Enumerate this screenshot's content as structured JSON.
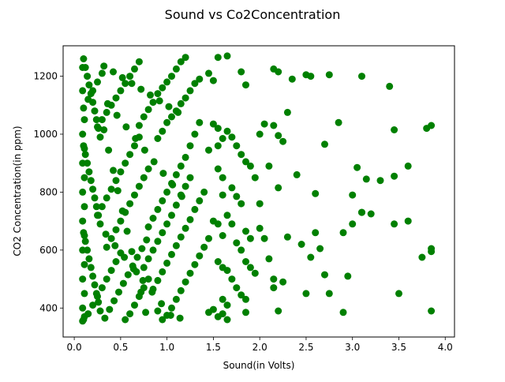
{
  "chart_data": {
    "type": "scatter",
    "title": "Sound vs Co2Concentration",
    "xlabel": "Sound(in Volts)",
    "ylabel": "CO2 Concentration(in ppm)",
    "xlim": [
      -0.12,
      4.1
    ],
    "ylim": [
      300,
      1305
    ],
    "xticks": [
      0.0,
      0.5,
      1.0,
      1.5,
      2.0,
      2.5,
      3.0,
      3.5,
      4.0
    ],
    "xtick_labels": [
      "0.0",
      "0.5",
      "1.0",
      "1.5",
      "2.0",
      "2.5",
      "3.0",
      "3.5",
      "4.0"
    ],
    "yticks": [
      400,
      600,
      800,
      1000,
      1200
    ],
    "ytick_labels": [
      "400",
      "600",
      "800",
      "1000",
      "1200"
    ],
    "grid": false,
    "marker_color": "#008000",
    "series": [
      {
        "points": [
          [
            1.55,
            1265
          ],
          [
            1.65,
            1270
          ],
          [
            1.8,
            1215
          ],
          [
            1.85,
            1170
          ],
          [
            2.15,
            1225
          ],
          [
            2.2,
            1215
          ],
          [
            2.35,
            1190
          ],
          [
            2.5,
            1205
          ],
          [
            2.55,
            1200
          ],
          [
            2.75,
            1205
          ],
          [
            3.1,
            1200
          ],
          [
            3.4,
            1165
          ],
          [
            2.3,
            1075
          ],
          [
            2.15,
            1030
          ],
          [
            2.05,
            1035
          ],
          [
            2.2,
            995
          ],
          [
            2.25,
            975
          ],
          [
            2.85,
            1040
          ],
          [
            3.45,
            1015
          ],
          [
            3.8,
            1020
          ],
          [
            3.85,
            1030
          ],
          [
            1.5,
            1035
          ],
          [
            1.55,
            1020
          ],
          [
            1.65,
            1010
          ],
          [
            1.7,
            990
          ],
          [
            1.75,
            960
          ],
          [
            1.8,
            930
          ],
          [
            1.85,
            905
          ],
          [
            1.9,
            890
          ],
          [
            2.0,
            1000
          ],
          [
            1.55,
            960
          ],
          [
            1.45,
            945
          ],
          [
            1.6,
            985
          ],
          [
            2.1,
            890
          ],
          [
            2.4,
            860
          ],
          [
            2.2,
            815
          ],
          [
            2.6,
            795
          ],
          [
            2.7,
            965
          ],
          [
            3.05,
            885
          ],
          [
            3.15,
            845
          ],
          [
            3.2,
            725
          ],
          [
            3.3,
            840
          ],
          [
            3.45,
            855
          ],
          [
            3.6,
            890
          ],
          [
            3.0,
            790
          ],
          [
            3.1,
            730
          ],
          [
            2.0,
            760
          ],
          [
            1.95,
            850
          ],
          [
            1.55,
            880
          ],
          [
            1.6,
            850
          ],
          [
            1.7,
            815
          ],
          [
            1.75,
            785
          ],
          [
            1.8,
            760
          ],
          [
            1.6,
            790
          ],
          [
            1.65,
            720
          ],
          [
            1.7,
            690
          ],
          [
            1.85,
            665
          ],
          [
            1.9,
            640
          ],
          [
            2.0,
            675
          ],
          [
            2.05,
            640
          ],
          [
            1.5,
            700
          ],
          [
            1.55,
            690
          ],
          [
            1.6,
            650
          ],
          [
            1.75,
            625
          ],
          [
            1.8,
            600
          ],
          [
            1.85,
            560
          ],
          [
            1.9,
            540
          ],
          [
            1.95,
            520
          ],
          [
            2.1,
            570
          ],
          [
            2.15,
            500
          ],
          [
            2.25,
            490
          ],
          [
            2.3,
            645
          ],
          [
            2.45,
            620
          ],
          [
            2.55,
            575
          ],
          [
            2.6,
            660
          ],
          [
            2.65,
            605
          ],
          [
            2.7,
            515
          ],
          [
            2.9,
            660
          ],
          [
            2.95,
            510
          ],
          [
            3.0,
            690
          ],
          [
            3.1,
            730
          ],
          [
            3.45,
            690
          ],
          [
            3.6,
            700
          ],
          [
            3.75,
            575
          ],
          [
            3.85,
            605
          ],
          [
            3.85,
            595
          ],
          [
            1.55,
            560
          ],
          [
            1.6,
            540
          ],
          [
            1.65,
            530
          ],
          [
            1.7,
            500
          ],
          [
            1.75,
            470
          ],
          [
            1.8,
            445
          ],
          [
            1.85,
            430
          ],
          [
            1.6,
            430
          ],
          [
            1.65,
            410
          ],
          [
            1.6,
            380
          ],
          [
            1.55,
            370
          ],
          [
            1.65,
            360
          ],
          [
            1.5,
            395
          ],
          [
            1.45,
            385
          ],
          [
            2.15,
            470
          ],
          [
            2.2,
            390
          ],
          [
            2.5,
            450
          ],
          [
            2.75,
            450
          ],
          [
            2.9,
            385
          ],
          [
            3.5,
            450
          ],
          [
            3.85,
            390
          ],
          [
            1.85,
            385
          ],
          [
            1.5,
            1185
          ],
          [
            1.45,
            1210
          ],
          [
            1.35,
            1190
          ],
          [
            1.3,
            1175
          ],
          [
            1.25,
            1150
          ],
          [
            1.2,
            1125
          ],
          [
            1.15,
            1105
          ],
          [
            1.1,
            1080
          ],
          [
            1.05,
            1060
          ],
          [
            1.0,
            1040
          ],
          [
            0.95,
            1010
          ],
          [
            0.9,
            985
          ],
          [
            1.35,
            1040
          ],
          [
            1.3,
            1000
          ],
          [
            1.25,
            960
          ],
          [
            1.2,
            920
          ],
          [
            1.15,
            890
          ],
          [
            1.1,
            860
          ],
          [
            1.05,
            830
          ],
          [
            1.0,
            800
          ],
          [
            0.95,
            770
          ],
          [
            0.9,
            740
          ],
          [
            0.85,
            710
          ],
          [
            0.8,
            680
          ],
          [
            1.4,
            800
          ],
          [
            1.35,
            770
          ],
          [
            1.3,
            740
          ],
          [
            1.25,
            705
          ],
          [
            1.2,
            675
          ],
          [
            1.15,
            645
          ],
          [
            1.1,
            615
          ],
          [
            1.05,
            585
          ],
          [
            1.0,
            555
          ],
          [
            0.95,
            525
          ],
          [
            0.9,
            495
          ],
          [
            0.85,
            465
          ],
          [
            1.45,
            640
          ],
          [
            1.4,
            610
          ],
          [
            1.35,
            580
          ],
          [
            1.3,
            550
          ],
          [
            1.25,
            520
          ],
          [
            1.2,
            490
          ],
          [
            1.15,
            460
          ],
          [
            1.1,
            430
          ],
          [
            1.05,
            400
          ],
          [
            1.0,
            375
          ],
          [
            0.95,
            360
          ],
          [
            0.9,
            390
          ],
          [
            1.2,
            1265
          ],
          [
            1.15,
            1250
          ],
          [
            1.1,
            1225
          ],
          [
            1.05,
            1200
          ],
          [
            1.0,
            1180
          ],
          [
            0.95,
            1160
          ],
          [
            0.9,
            1140
          ],
          [
            0.85,
            1110
          ],
          [
            0.8,
            1085
          ],
          [
            0.75,
            1060
          ],
          [
            0.7,
            1030
          ],
          [
            1.25,
            850
          ],
          [
            1.2,
            820
          ],
          [
            1.15,
            790
          ],
          [
            1.1,
            755
          ],
          [
            1.05,
            720
          ],
          [
            1.0,
            690
          ],
          [
            0.95,
            660
          ],
          [
            0.9,
            630
          ],
          [
            0.85,
            600
          ],
          [
            0.8,
            570
          ],
          [
            0.75,
            540
          ],
          [
            0.7,
            1250
          ],
          [
            0.65,
            1225
          ],
          [
            0.6,
            1200
          ],
          [
            0.55,
            1175
          ],
          [
            0.5,
            1150
          ],
          [
            0.45,
            1125
          ],
          [
            0.4,
            1100
          ],
          [
            0.35,
            1075
          ],
          [
            0.3,
            1050
          ],
          [
            0.25,
            1025
          ],
          [
            0.7,
            990
          ],
          [
            0.65,
            960
          ],
          [
            0.6,
            930
          ],
          [
            0.55,
            900
          ],
          [
            0.5,
            870
          ],
          [
            0.45,
            840
          ],
          [
            0.4,
            810
          ],
          [
            0.35,
            780
          ],
          [
            0.3,
            750
          ],
          [
            0.25,
            720
          ],
          [
            0.8,
            880
          ],
          [
            0.75,
            850
          ],
          [
            0.7,
            820
          ],
          [
            0.65,
            790
          ],
          [
            0.6,
            760
          ],
          [
            0.55,
            730
          ],
          [
            0.5,
            700
          ],
          [
            0.45,
            670
          ],
          [
            0.4,
            640
          ],
          [
            0.35,
            610
          ],
          [
            0.8,
            500
          ],
          [
            0.75,
            470
          ],
          [
            0.7,
            440
          ],
          [
            0.65,
            410
          ],
          [
            0.6,
            380
          ],
          [
            0.55,
            360
          ],
          [
            0.5,
            590
          ],
          [
            0.45,
            560
          ],
          [
            0.4,
            530
          ],
          [
            0.35,
            500
          ],
          [
            0.3,
            470
          ],
          [
            0.25,
            440
          ],
          [
            0.2,
            410
          ],
          [
            0.15,
            380
          ],
          [
            0.1,
            360
          ],
          [
            0.3,
            1210
          ],
          [
            0.25,
            1180
          ],
          [
            0.2,
            1150
          ],
          [
            0.15,
            1120
          ],
          [
            0.1,
            1090
          ],
          [
            0.1,
            1260
          ],
          [
            0.12,
            1230
          ],
          [
            0.14,
            1200
          ],
          [
            0.16,
            1170
          ],
          [
            0.18,
            1140
          ],
          [
            0.2,
            1110
          ],
          [
            0.22,
            1080
          ],
          [
            0.24,
            1050
          ],
          [
            0.26,
            1020
          ],
          [
            0.28,
            990
          ],
          [
            0.1,
            960
          ],
          [
            0.12,
            930
          ],
          [
            0.14,
            900
          ],
          [
            0.16,
            870
          ],
          [
            0.18,
            840
          ],
          [
            0.2,
            810
          ],
          [
            0.22,
            780
          ],
          [
            0.24,
            750
          ],
          [
            0.26,
            720
          ],
          [
            0.28,
            690
          ],
          [
            0.1,
            660
          ],
          [
            0.12,
            630
          ],
          [
            0.14,
            600
          ],
          [
            0.16,
            570
          ],
          [
            0.18,
            540
          ],
          [
            0.2,
            510
          ],
          [
            0.22,
            480
          ],
          [
            0.24,
            450
          ],
          [
            0.26,
            420
          ],
          [
            0.28,
            390
          ],
          [
            0.09,
            1000
          ],
          [
            0.09,
            900
          ],
          [
            0.09,
            800
          ],
          [
            0.09,
            700
          ],
          [
            0.09,
            600
          ],
          [
            0.09,
            500
          ],
          [
            0.09,
            400
          ],
          [
            0.09,
            355
          ],
          [
            0.09,
            1150
          ],
          [
            0.09,
            1230
          ],
          [
            0.11,
            1050
          ],
          [
            0.11,
            950
          ],
          [
            0.11,
            850
          ],
          [
            0.11,
            750
          ],
          [
            0.11,
            650
          ],
          [
            0.11,
            550
          ],
          [
            0.11,
            450
          ],
          [
            0.11,
            370
          ],
          [
            0.32,
            1015
          ],
          [
            0.37,
            945
          ],
          [
            0.42,
            875
          ],
          [
            0.47,
            805
          ],
          [
            0.52,
            735
          ],
          [
            0.57,
            665
          ],
          [
            0.62,
            595
          ],
          [
            0.67,
            525
          ],
          [
            0.72,
            455
          ],
          [
            0.77,
            385
          ],
          [
            0.33,
            365
          ],
          [
            0.38,
            395
          ],
          [
            0.43,
            425
          ],
          [
            0.48,
            455
          ],
          [
            0.53,
            485
          ],
          [
            0.58,
            515
          ],
          [
            0.63,
            545
          ],
          [
            0.68,
            575
          ],
          [
            0.73,
            605
          ],
          [
            0.78,
            635
          ],
          [
            0.32,
            1235
          ],
          [
            0.42,
            1215
          ],
          [
            0.52,
            1195
          ],
          [
            0.62,
            1175
          ],
          [
            0.72,
            1155
          ],
          [
            0.82,
            1135
          ],
          [
            0.92,
            1115
          ],
          [
            1.02,
            1095
          ],
          [
            1.12,
            1075
          ],
          [
            0.36,
            1105
          ],
          [
            0.46,
            1065
          ],
          [
            0.56,
            1025
          ],
          [
            0.66,
            985
          ],
          [
            0.76,
            945
          ],
          [
            0.86,
            905
          ],
          [
            0.96,
            865
          ],
          [
            1.06,
            825
          ],
          [
            1.16,
            785
          ],
          [
            0.34,
            655
          ],
          [
            0.44,
            615
          ],
          [
            0.54,
            575
          ],
          [
            0.64,
            535
          ],
          [
            0.74,
            495
          ],
          [
            0.84,
            455
          ],
          [
            0.94,
            415
          ],
          [
            1.04,
            375
          ],
          [
            1.14,
            365
          ]
        ]
      }
    ]
  }
}
